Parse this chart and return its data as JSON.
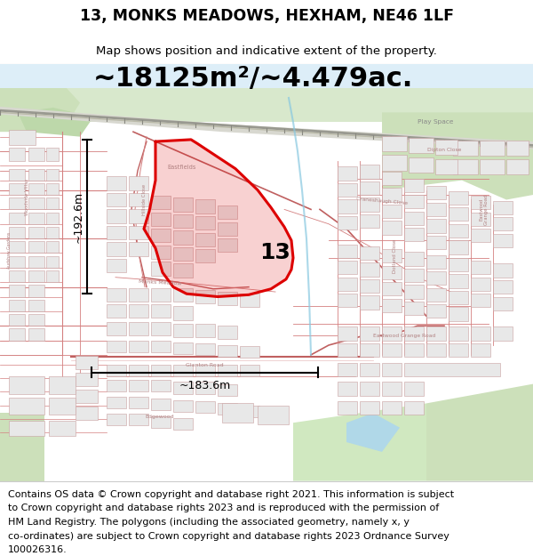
{
  "title": "13, MONKS MEADOWS, HEXHAM, NE46 1LF",
  "subtitle": "Map shows position and indicative extent of the property.",
  "area_text": "~18125m²/~4.479ac.",
  "dim_height": "~192.6m",
  "dim_width": "~183.6m",
  "plot_number": "13",
  "footer_lines": [
    "Contains OS data © Crown copyright and database right 2021. This information is subject",
    "to Crown copyright and database rights 2023 and is reproduced with the permission of",
    "HM Land Registry. The polygons (including the associated geometry, namely x, y",
    "co-ordinates) are subject to Crown copyright and database rights 2023 Ordnance Survey",
    "100026316."
  ],
  "map_bg": "#f5f3ef",
  "green1": "#d8e8cc",
  "green2": "#cde0c0",
  "water": "#c5e0eb",
  "building_fill": "#e8e8e8",
  "building_edge": "#c8a0a0",
  "road_line": "#d48080",
  "road_major": "#c06060",
  "railway_fill": "#aaaaaa",
  "railway_edge": "#888888",
  "plot_color": "#dd0000",
  "plot_fill": "#dd0000",
  "plot_alpha": 0.18,
  "dim_color": "#000000",
  "text_label_color": "#b08080",
  "title_fs": 12.5,
  "subtitle_fs": 9.5,
  "area_fs": 22,
  "label_fs": 4.8,
  "dim_fs": 9,
  "plot_num_fs": 18,
  "footer_fs": 8.0
}
